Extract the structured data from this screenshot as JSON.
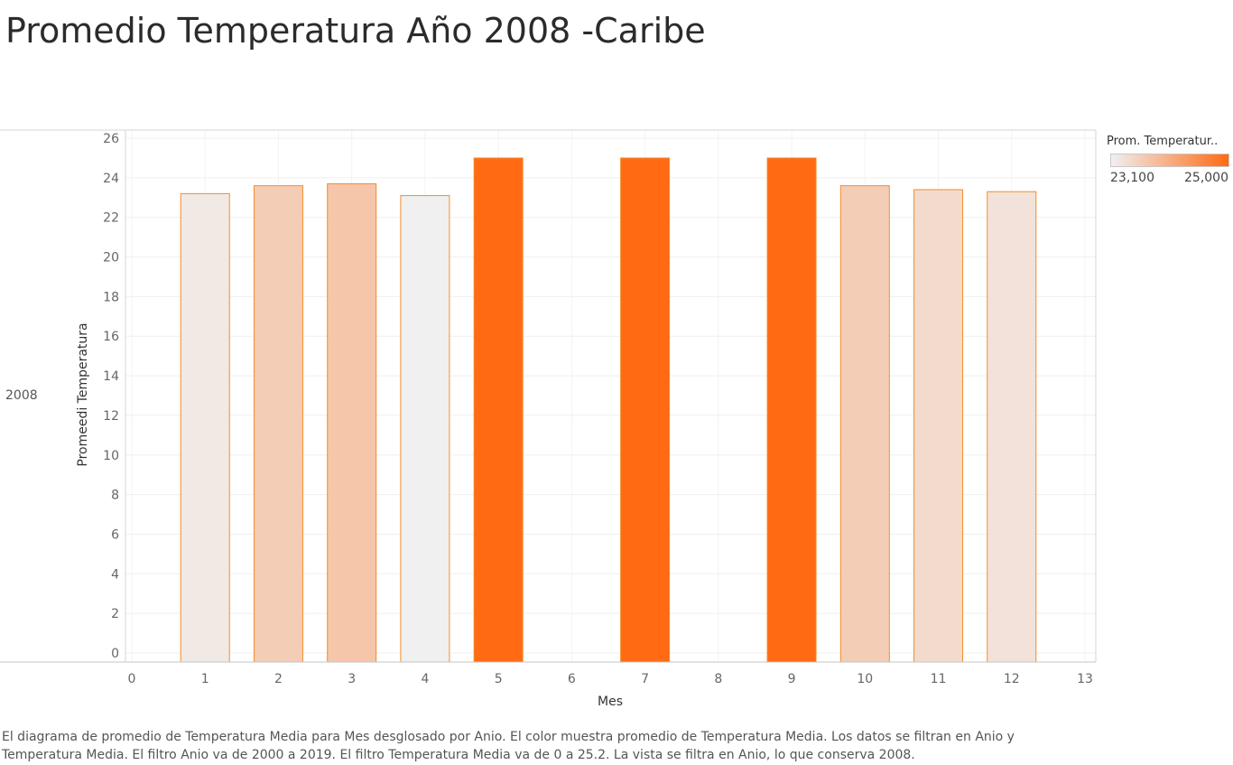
{
  "title": "Promedio Temperatura Año 2008 -Caribe",
  "row_label": "2008",
  "legend": {
    "title": "Prom. Temperatur..",
    "min_label": "23,100",
    "max_label": "25,000",
    "min_color": "#f0f0f0",
    "max_color": "#ff6a12"
  },
  "caption": "El diagrama de promedio de Temperatura Media para Mes desglosado por Anio.  El color muestra promedio de Temperatura Media. Los datos se filtran en Anio y Temperatura Media. El filtro Anio va de 2000 a 2019. El filtro Temperatura Media va de 0 a 25.2. La vista se filtra en Anio, lo que conserva 2008.",
  "chart_data": {
    "type": "bar",
    "title": "Promedio Temperatura Año 2008 -Caribe",
    "xlabel": "Mes",
    "ylabel": "Promeedi Temperatura",
    "x": [
      1,
      2,
      3,
      4,
      5,
      7,
      9,
      10,
      11,
      12
    ],
    "values": [
      23.2,
      23.6,
      23.7,
      23.1,
      25.0,
      25.0,
      25.0,
      23.6,
      23.4,
      23.3
    ],
    "xlim": [
      0,
      13
    ],
    "ylim": [
      0,
      26
    ],
    "x_ticks": [
      0,
      1,
      2,
      3,
      4,
      5,
      6,
      7,
      8,
      9,
      10,
      11,
      12,
      13
    ],
    "y_ticks": [
      0,
      2,
      4,
      6,
      8,
      10,
      12,
      14,
      16,
      18,
      20,
      22,
      24,
      26
    ],
    "color_scale": {
      "min": 23.1,
      "max": 25.0
    },
    "grid": true,
    "legend_position": "top-right"
  }
}
